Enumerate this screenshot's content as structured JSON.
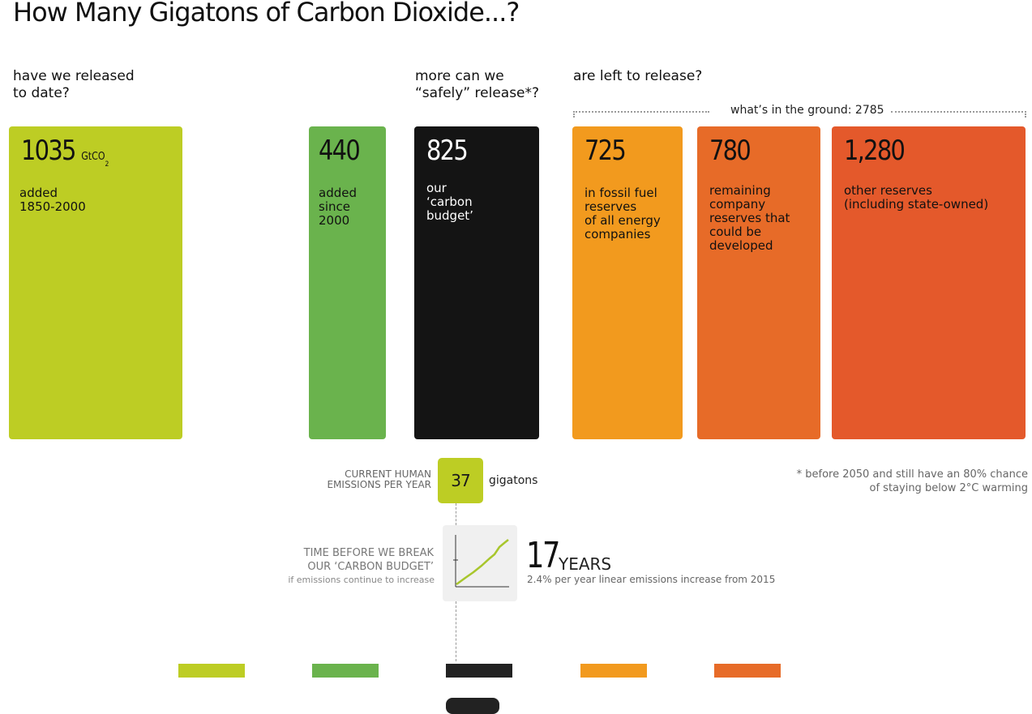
{
  "title": "How Many Gigatons of Carbon Dioxide...?",
  "questions": {
    "q1": "have we released\nto date?",
    "q2": "more can we\n“safely” release*?",
    "q3": "are left to release?"
  },
  "ground_label": "what’s in the ground: 2785",
  "bars": [
    {
      "value": "1035",
      "unit": "GtCO",
      "unit_sub": "2",
      "desc": "added\n1850-2000",
      "color": "#bdcd24"
    },
    {
      "value": "440",
      "desc": "added\nsince\n2000",
      "color": "#6ab34d"
    },
    {
      "value": "825",
      "desc": "our\n‘carbon\nbudget’",
      "color": "#141414"
    },
    {
      "value": "725",
      "desc": "in fossil fuel\nreserves\nof all energy\ncompanies",
      "color": "#f29a1e"
    },
    {
      "value": "780",
      "desc": "remaining\ncompany\nreserves that\ncould be\ndeveloped",
      "color": "#e76b28"
    },
    {
      "value": "1,280",
      "desc": "other reserves\n(including state-owned)",
      "color": "#e4592b"
    }
  ],
  "footnote": "* before 2050 and still have an 80% chance\nof staying below 2°C warming",
  "emissions": {
    "label": "CURRENT HUMAN\nEMISSIONS PER YEAR",
    "value": "37",
    "unit": "gigatons"
  },
  "time_before": {
    "label": "TIME BEFORE WE BREAK\nOUR ‘CARBON BUDGET’",
    "sublabel": "if emissions continue to increase",
    "value": "17",
    "unit": "YEARS",
    "note": "2.4% per year linear emissions increase from 2015"
  },
  "legend_colors": [
    "#bdcd24",
    "#6ab34d",
    "#222222",
    "#f29a1e",
    "#e76b28"
  ]
}
